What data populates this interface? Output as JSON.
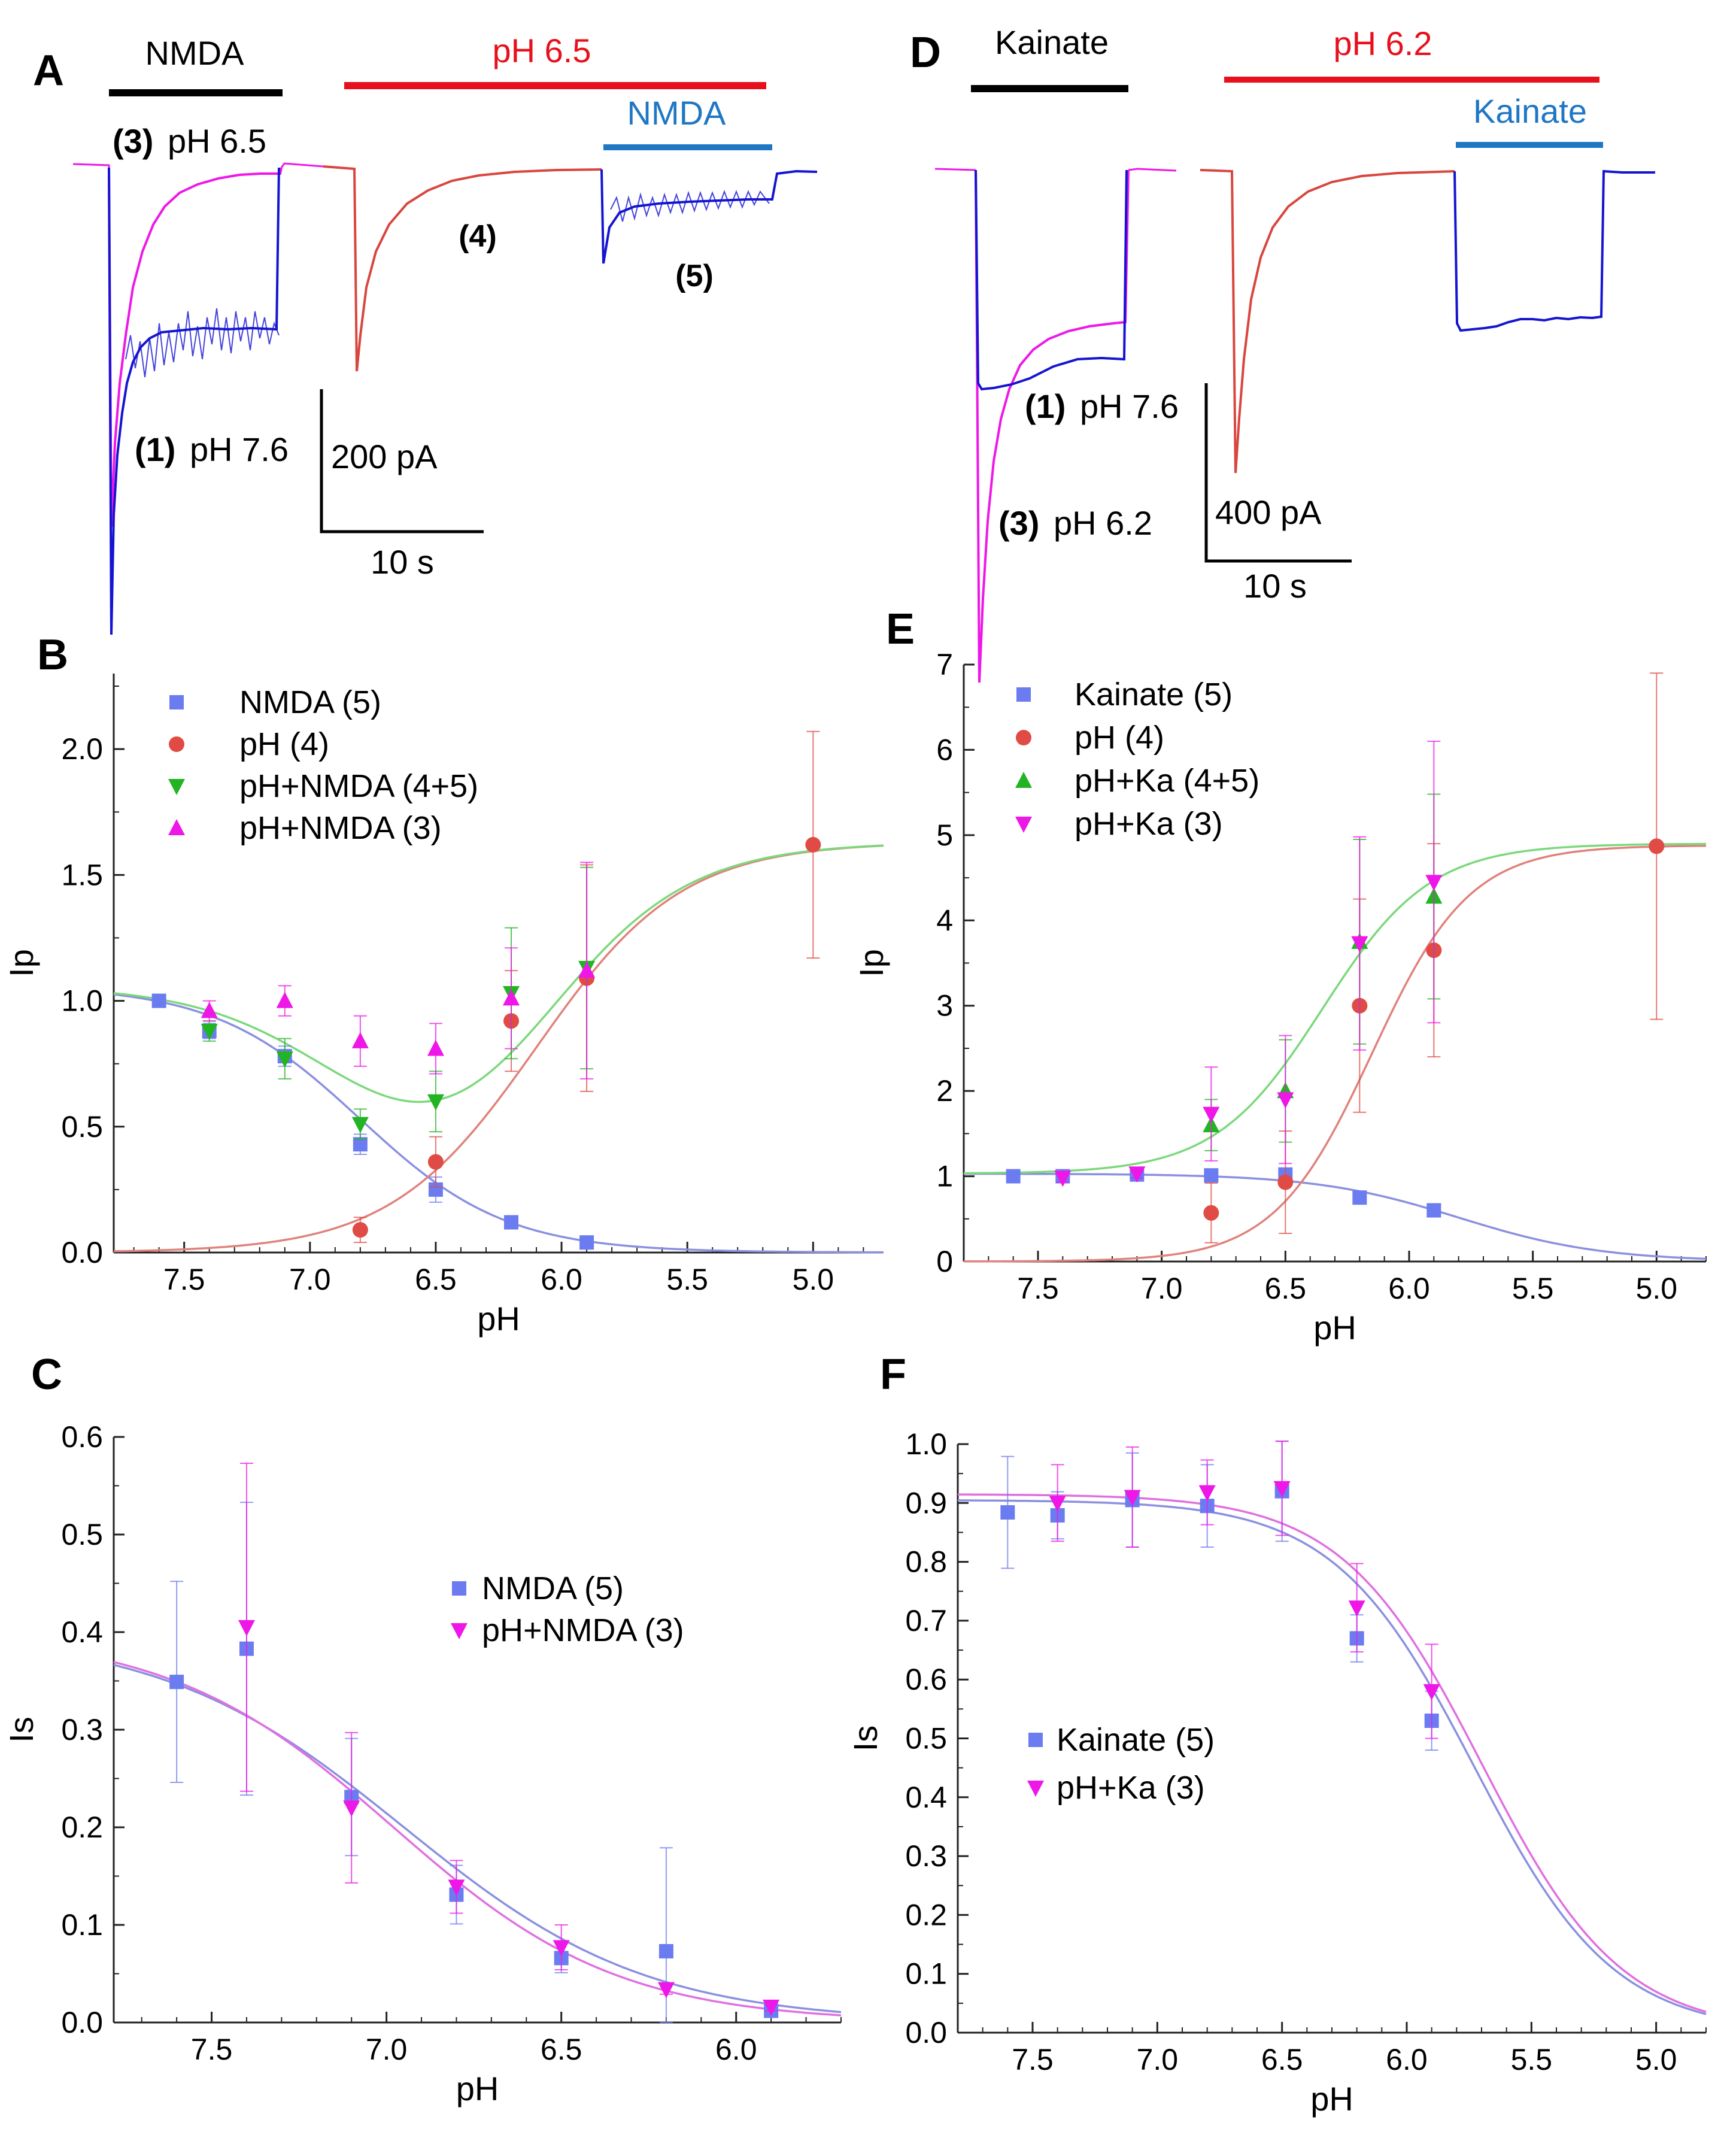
{
  "colors": {
    "blue": "#1414d2",
    "magenta": "#ee17e8",
    "red": "#d8463e",
    "scale": "#000000",
    "bar_black": "#000000",
    "bar_red": "#e8101c",
    "bar_blue": "#1f77c4",
    "s_blue": "#6b7cf0",
    "s_red": "#e14b45",
    "s_green": "#22b422",
    "s_magenta": "#ee17e8",
    "fit_blue": "#8a90e0",
    "fit_red": "#e0827c",
    "fit_green": "#7cd87c",
    "fit_magenta": "#e070e0",
    "axis": "#222222",
    "text": "#000000"
  },
  "panel_labels": {
    "A": "A",
    "B": "B",
    "C": "C",
    "D": "D",
    "E": "E",
    "F": "F"
  },
  "panelA": {
    "bar_ligand": "NMDA",
    "bar_acid": "pH 6.5",
    "bar_ligand2": "NMDA",
    "trace3_num": "(3)",
    "trace3_label": "pH 6.5",
    "trace1_num": "(1)",
    "trace1_label": "pH 7.6",
    "trace4_num": "(4)",
    "trace5_num": "(5)",
    "scale_y": "200 pA",
    "scale_x": "10 s"
  },
  "panelD": {
    "bar_ligand": "Kainate",
    "bar_acid": "pH 6.2",
    "bar_ligand2": "Kainate",
    "trace1_num": "(1)",
    "trace1_label": "pH 7.6",
    "trace3_num": "(3)",
    "trace3_label": "pH 6.2",
    "scale_y": "400 pA",
    "scale_x": "10 s"
  },
  "chart_data": [
    {
      "panel": "B",
      "type": "scatter",
      "xlabel": "pH",
      "ylabel": "Ip",
      "xlim": [
        7.78,
        4.72
      ],
      "ylim": [
        0,
        2.3
      ],
      "xticks": [
        "7.5",
        "7.0",
        "6.5",
        "6.0",
        "5.5",
        "5.0"
      ],
      "yticks": [
        "0.0",
        "0.5",
        "1.0",
        "1.5",
        "2.0"
      ],
      "legend_position": "top-left",
      "series": [
        {
          "name": "NMDA (5)",
          "marker": "square",
          "color": "s_blue",
          "x": [
            7.6,
            7.4,
            7.1,
            6.8,
            6.5,
            6.2,
            5.9
          ],
          "y": [
            1.0,
            0.88,
            0.78,
            0.43,
            0.25,
            0.12,
            0.04
          ],
          "err": [
            0.01,
            0.03,
            0.04,
            0.04,
            0.05,
            0.02,
            0.01
          ]
        },
        {
          "name": "pH (4)",
          "marker": "circle",
          "color": "s_red",
          "x": [
            6.8,
            6.5,
            6.2,
            5.9,
            5.0
          ],
          "y": [
            0.09,
            0.36,
            0.92,
            1.09,
            1.62
          ],
          "err": [
            0.05,
            0.1,
            0.2,
            0.45,
            0.45
          ]
        },
        {
          "name": "pH+NMDA (4+5)",
          "marker": "triangle-down",
          "color": "s_green",
          "x": [
            7.4,
            7.1,
            6.8,
            6.5,
            6.2,
            5.9
          ],
          "y": [
            0.88,
            0.77,
            0.51,
            0.6,
            1.03,
            1.13
          ],
          "err": [
            0.04,
            0.08,
            0.06,
            0.12,
            0.26,
            0.4
          ]
        },
        {
          "name": "pH+NMDA (3)",
          "marker": "triangle-up",
          "color": "s_magenta",
          "x": [
            7.4,
            7.1,
            6.8,
            6.5,
            6.2,
            5.9
          ],
          "y": [
            0.96,
            1.0,
            0.84,
            0.81,
            1.01,
            1.12
          ],
          "err": [
            0.04,
            0.06,
            0.1,
            0.1,
            0.2,
            0.43
          ]
        }
      ],
      "fits": [
        {
          "name": "NMDA fit",
          "color": "fit_blue",
          "form": "dec",
          "A": 1.06,
          "pK": 6.8,
          "n": 1.5
        },
        {
          "name": "pH fit",
          "color": "fit_red",
          "form": "inc",
          "A": 1.63,
          "pK": 6.1,
          "n": 1.5
        },
        {
          "name": "pH+NMDA fit",
          "color": "fit_green",
          "form": "sum",
          "A1": 1.06,
          "pK1": 6.8,
          "n1": 1.5,
          "A2": 1.63,
          "pK2": 6.1,
          "n2": 1.5
        }
      ]
    },
    {
      "panel": "C",
      "type": "scatter",
      "xlabel": "pH",
      "ylabel": "Is",
      "xlim": [
        7.78,
        5.7
      ],
      "ylim": [
        0,
        0.6
      ],
      "xticks": [
        "7.5",
        "7.0",
        "6.5",
        "6.0"
      ],
      "yticks": [
        "0.0",
        "0.1",
        "0.2",
        "0.3",
        "0.4",
        "0.5",
        "0.6"
      ],
      "legend_position": "center-right",
      "series": [
        {
          "name": "NMDA (5)",
          "marker": "square",
          "color": "s_blue",
          "x": [
            7.6,
            7.4,
            7.1,
            6.8,
            6.5,
            6.2,
            5.9
          ],
          "y": [
            0.349,
            0.383,
            0.231,
            0.131,
            0.066,
            0.073,
            0.012
          ],
          "err": [
            0.103,
            0.15,
            0.06,
            0.03,
            0.015,
            0.106,
            0.005
          ]
        },
        {
          "name": "pH+NMDA (3)",
          "marker": "triangle-down",
          "color": "s_magenta",
          "x": [
            7.4,
            7.1,
            6.8,
            6.5,
            6.2,
            5.9
          ],
          "y": [
            0.405,
            0.22,
            0.139,
            0.077,
            0.034,
            0.016
          ],
          "err": [
            0.168,
            0.077,
            0.027,
            0.023,
            0.005,
            0.004
          ]
        }
      ],
      "fits": [
        {
          "name": "NMDA fit",
          "color": "fit_blue",
          "form": "dec",
          "A": 0.4,
          "pK": 6.95,
          "n": 1.25
        },
        {
          "name": "pH+NMDA fit",
          "color": "fit_magenta",
          "form": "dec",
          "A": 0.4,
          "pK": 6.98,
          "n": 1.35
        }
      ]
    },
    {
      "panel": "E",
      "type": "scatter",
      "xlabel": "pH",
      "ylabel": "Ip",
      "xlim": [
        7.8,
        4.8
      ],
      "ylim": [
        0,
        7
      ],
      "xticks": [
        "7.5",
        "7.0",
        "6.5",
        "6.0",
        "5.5",
        "5.0"
      ],
      "yticks": [
        "0",
        "1",
        "2",
        "3",
        "4",
        "5",
        "6",
        "7"
      ],
      "legend_position": "top-left",
      "series": [
        {
          "name": "Kainate (5)",
          "marker": "square",
          "color": "s_blue",
          "x": [
            7.6,
            7.4,
            7.1,
            6.8,
            6.5,
            6.2,
            5.9
          ],
          "y": [
            1.0,
            1.0,
            1.02,
            1.01,
            1.02,
            0.75,
            0.6
          ],
          "err": [
            0.02,
            0.02,
            0.02,
            0.03,
            0.05,
            0.05,
            0.03
          ]
        },
        {
          "name": "pH (4)",
          "marker": "circle",
          "color": "s_red",
          "x": [
            6.8,
            6.5,
            6.2,
            5.9,
            5.0
          ],
          "y": [
            0.57,
            0.93,
            3.0,
            3.65,
            4.87
          ],
          "err": [
            0.35,
            0.6,
            1.25,
            1.25,
            2.03
          ]
        },
        {
          "name": "pH+Ka (4+5)",
          "marker": "triangle-up",
          "color": "s_green",
          "x": [
            6.8,
            6.5,
            6.2,
            5.9
          ],
          "y": [
            1.6,
            2.0,
            3.75,
            4.28
          ],
          "err": [
            0.3,
            0.6,
            1.2,
            1.2
          ]
        },
        {
          "name": "pH+Ka (3)",
          "marker": "triangle-down",
          "color": "s_magenta",
          "x": [
            7.4,
            7.1,
            6.8,
            6.5,
            6.2,
            5.9
          ],
          "y": [
            0.98,
            1.03,
            1.73,
            1.9,
            3.73,
            4.45
          ],
          "err": [
            0.05,
            0.05,
            0.55,
            0.75,
            1.25,
            1.65
          ]
        }
      ],
      "fits": [
        {
          "name": "Kainate fit",
          "color": "fit_blue",
          "form": "dec",
          "A": 1.03,
          "pK": 5.8,
          "n": 1.5
        },
        {
          "name": "pH fit",
          "color": "fit_red",
          "form": "inc",
          "A": 4.88,
          "pK": 6.15,
          "n": 2.2
        },
        {
          "name": "pH+Ka fit",
          "color": "fit_green",
          "form": "offset",
          "base": 1.03,
          "A": 3.87,
          "pK": 6.35,
          "n": 2.0
        }
      ]
    },
    {
      "panel": "F",
      "type": "scatter",
      "xlabel": "pH",
      "ylabel": "Is",
      "xlim": [
        7.8,
        4.8
      ],
      "ylim": [
        0,
        1.0
      ],
      "xticks": [
        "7.5",
        "7.0",
        "6.5",
        "6.0",
        "5.5",
        "5.0"
      ],
      "yticks": [
        "0.0",
        "0.1",
        "0.2",
        "0.3",
        "0.4",
        "0.5",
        "0.6",
        "0.7",
        "0.8",
        "0.9",
        "1.0"
      ],
      "legend_position": "center-left",
      "series": [
        {
          "name": "Kainate (5)",
          "marker": "square",
          "color": "s_blue",
          "x": [
            7.6,
            7.4,
            7.1,
            6.8,
            6.5,
            6.2,
            5.9
          ],
          "y": [
            0.884,
            0.879,
            0.905,
            0.895,
            0.92,
            0.67,
            0.53
          ],
          "err": [
            0.095,
            0.04,
            0.08,
            0.07,
            0.085,
            0.04,
            0.05
          ]
        },
        {
          "name": "pH+Ka (3)",
          "marker": "triangle-down",
          "color": "s_magenta",
          "x": [
            7.4,
            7.1,
            6.8,
            6.5,
            6.2,
            5.9
          ],
          "y": [
            0.9,
            0.91,
            0.918,
            0.925,
            0.722,
            0.58
          ],
          "err": [
            0.065,
            0.085,
            0.055,
            0.08,
            0.075,
            0.08
          ]
        }
      ],
      "fits": [
        {
          "name": "Kainate fit",
          "color": "fit_blue",
          "form": "dec",
          "A": 0.905,
          "pK": 5.73,
          "n": 1.55
        },
        {
          "name": "pH+Ka fit",
          "color": "fit_magenta",
          "form": "dec",
          "A": 0.915,
          "pK": 5.7,
          "n": 1.55
        }
      ]
    }
  ]
}
